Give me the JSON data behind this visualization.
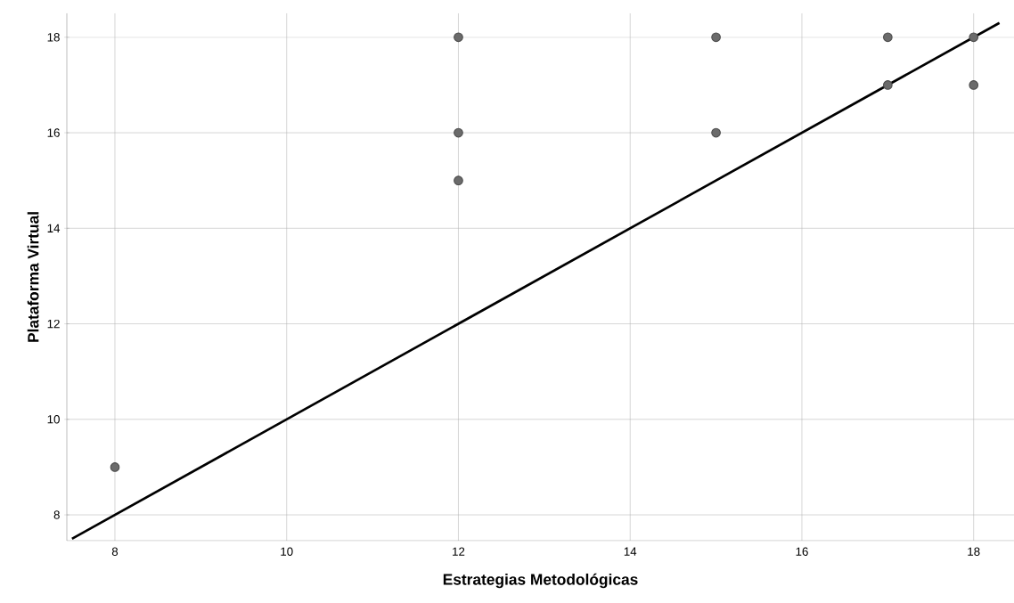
{
  "chart_data": {
    "type": "scatter",
    "xlabel": "Estrategias Metodológicas",
    "ylabel": "Plataforma Virtual",
    "xlim": [
      7.44,
      18.47
    ],
    "ylim": [
      7.46,
      18.5
    ],
    "xticks": [
      8,
      10,
      12,
      14,
      16,
      18
    ],
    "yticks": [
      8,
      10,
      12,
      14,
      16,
      18
    ],
    "grid": true,
    "series": [
      {
        "color": "#6b6b6b",
        "marker": "circle",
        "x": [
          8,
          12,
          12,
          12,
          15,
          15,
          17,
          17,
          18,
          18
        ],
        "values": [
          9,
          18,
          16,
          15,
          18,
          16,
          18,
          17,
          18,
          17
        ]
      },
      {
        "type": "line",
        "color": "#000000",
        "line_style": "solid",
        "marker": "none",
        "x": [
          7.5,
          18.3
        ],
        "values": [
          7.5,
          18.3
        ]
      }
    ]
  }
}
